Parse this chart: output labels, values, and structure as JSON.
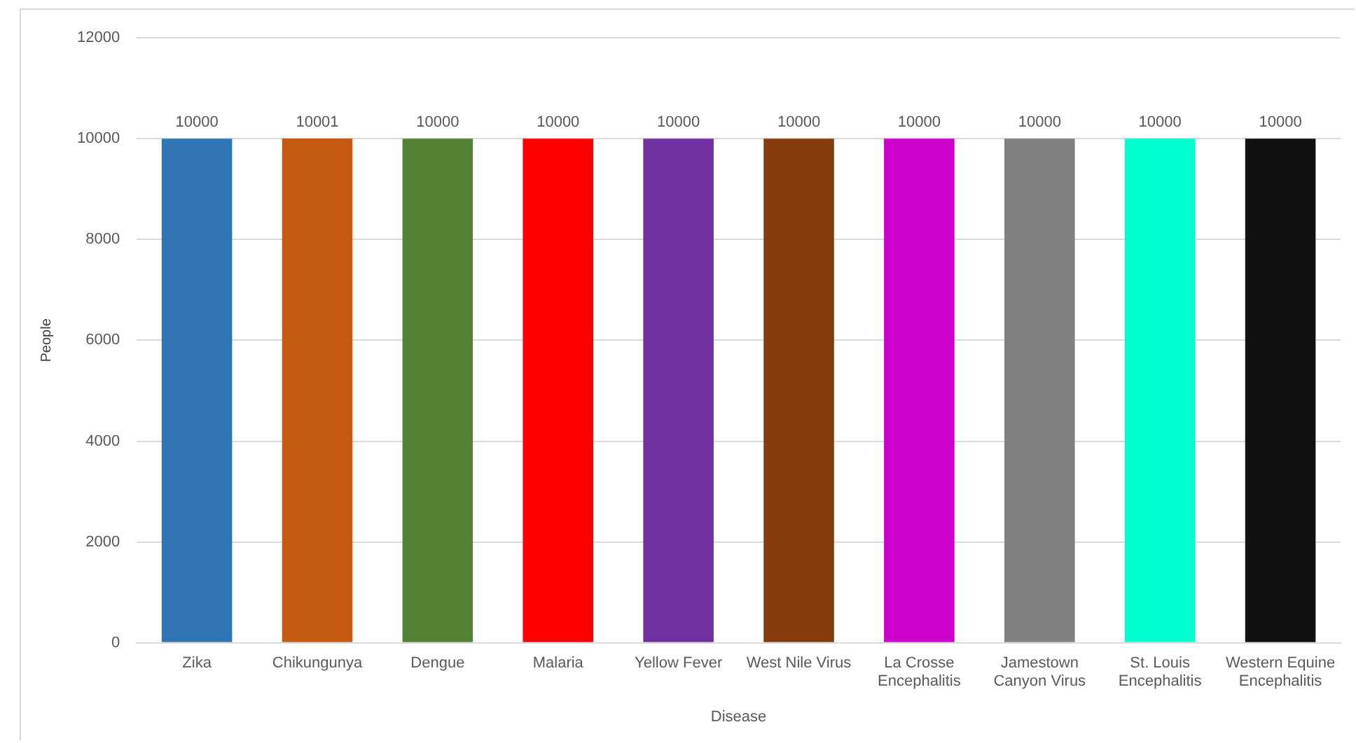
{
  "chart_data": {
    "type": "bar",
    "xlabel": "Disease",
    "ylabel": "People",
    "categories": [
      "Zika",
      "Chikungunya",
      "Dengue",
      "Malaria",
      "Yellow Fever",
      "West Nile Virus",
      "La Crosse Encephalitis",
      "Jamestown Canyon Virus",
      "St. Louis Encephalitis",
      "Western Equine Encephalitis"
    ],
    "values": [
      10000,
      10001,
      10000,
      10000,
      10000,
      10000,
      10000,
      10000,
      10000,
      10000
    ],
    "colors": [
      "#2e75b6",
      "#c55a11",
      "#548235",
      "#ff0000",
      "#7030a0",
      "#843c0c",
      "#cc00cc",
      "#808080",
      "#00ffcc",
      "#111111"
    ],
    "ylim": [
      0,
      12000
    ],
    "yticks": [
      0,
      2000,
      4000,
      6000,
      8000,
      10000,
      12000
    ],
    "grid": "y",
    "data_labels": true
  }
}
